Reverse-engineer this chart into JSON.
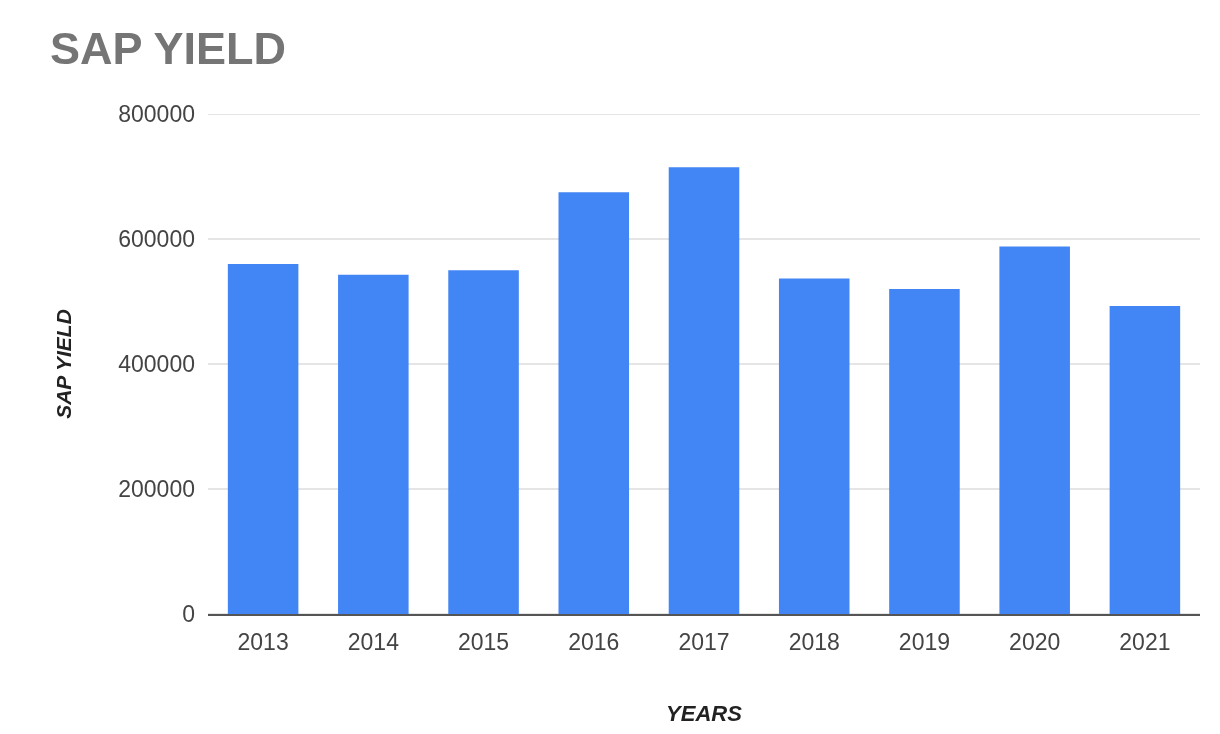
{
  "chart_data": {
    "type": "bar",
    "title": "SAP YIELD",
    "xlabel": "YEARS",
    "ylabel": "SAP YIELD",
    "categories": [
      "2013",
      "2014",
      "2015",
      "2016",
      "2017",
      "2018",
      "2019",
      "2020",
      "2021"
    ],
    "values": [
      560000,
      543000,
      550000,
      675000,
      715000,
      537000,
      520000,
      588000,
      493000
    ],
    "color": "#4285f4",
    "ylim": [
      0,
      800000
    ],
    "yticks": [
      0,
      200000,
      400000,
      600000,
      800000
    ],
    "grid": "y"
  }
}
